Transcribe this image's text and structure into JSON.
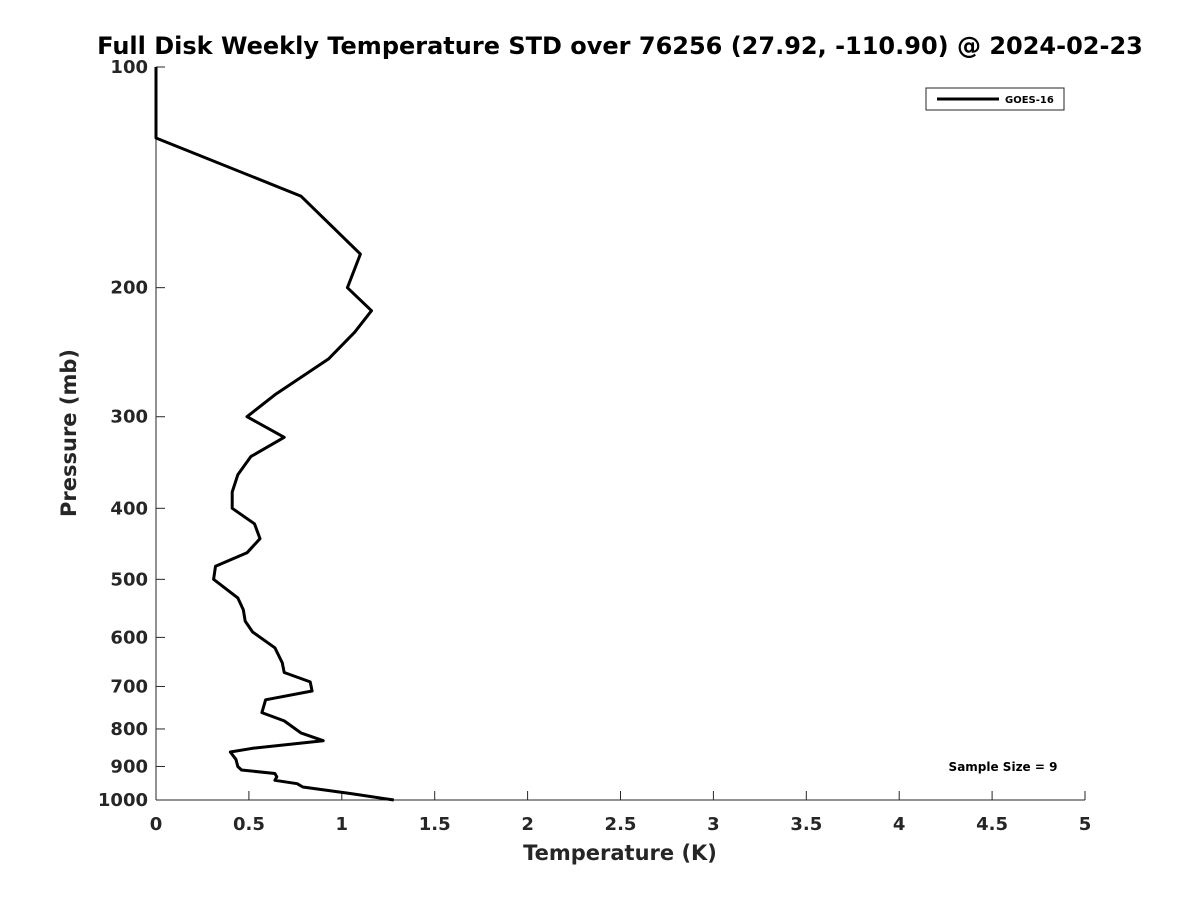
{
  "chart_data": {
    "type": "line",
    "title": "Full Disk Weekly Temperature STD over 76256 (27.92, -110.90) @ 2024-02-23",
    "xlabel": "Temperature (K)",
    "ylabel": "Pressure (mb)",
    "xlim": [
      0,
      5
    ],
    "ylim": [
      100,
      1000
    ],
    "y_scale": "log",
    "y_reversed": true,
    "grid": false,
    "legend_position": "top-right",
    "x_ticks": [
      "0",
      "0.5",
      "1",
      "1.5",
      "2",
      "2.5",
      "3",
      "3.5",
      "4",
      "4.5",
      "5"
    ],
    "y_ticks": [
      "100",
      "200",
      "300",
      "400",
      "500",
      "600",
      "700",
      "800",
      "900",
      "1000"
    ],
    "series": [
      {
        "name": "GOES-16",
        "color": "#000000",
        "points": [
          [
            0.0,
            100
          ],
          [
            0.0,
            125
          ],
          [
            0.78,
            150
          ],
          [
            1.1,
            180
          ],
          [
            1.03,
            200
          ],
          [
            1.16,
            215
          ],
          [
            1.07,
            230
          ],
          [
            0.93,
            250
          ],
          [
            0.64,
            280
          ],
          [
            0.49,
            300
          ],
          [
            0.69,
            320
          ],
          [
            0.51,
            340
          ],
          [
            0.44,
            360
          ],
          [
            0.41,
            380
          ],
          [
            0.41,
            400
          ],
          [
            0.53,
            420
          ],
          [
            0.56,
            440
          ],
          [
            0.49,
            460
          ],
          [
            0.32,
            480
          ],
          [
            0.31,
            500
          ],
          [
            0.44,
            530
          ],
          [
            0.47,
            550
          ],
          [
            0.48,
            570
          ],
          [
            0.52,
            590
          ],
          [
            0.64,
            620
          ],
          [
            0.68,
            650
          ],
          [
            0.69,
            670
          ],
          [
            0.83,
            690
          ],
          [
            0.84,
            710
          ],
          [
            0.59,
            730
          ],
          [
            0.57,
            760
          ],
          [
            0.69,
            780
          ],
          [
            0.78,
            810
          ],
          [
            0.9,
            830
          ],
          [
            0.52,
            850
          ],
          [
            0.4,
            860
          ],
          [
            0.43,
            880
          ],
          [
            0.44,
            900
          ],
          [
            0.46,
            910
          ],
          [
            0.64,
            920
          ],
          [
            0.65,
            930
          ],
          [
            0.64,
            940
          ],
          [
            0.76,
            950
          ],
          [
            0.79,
            960
          ],
          [
            1.05,
            980
          ],
          [
            1.28,
            1000
          ]
        ]
      }
    ],
    "annotation": "Sample Size = 9"
  }
}
